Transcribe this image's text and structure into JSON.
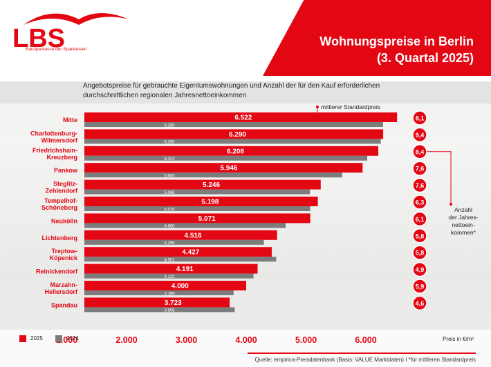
{
  "brand": {
    "logo_text": "LBS",
    "logo_sub": "Bausparkasse der Sparkassen",
    "red": "#e30613",
    "grey": "#7c7c7c"
  },
  "header": {
    "title_line1": "Wohnungspreise in Berlin",
    "title_line2": "(3. Quartal 2025)"
  },
  "subtitle": {
    "line1": "Angebotspreise für gebrauchte Eigentumswohnungen und Anzahl der für den Kauf erforderlichen",
    "line2": "durchschnittlichen regionalen Jahresnettoeinkommen"
  },
  "annotations": {
    "median_label": "mittlerer Standardpreis",
    "income_label": [
      "Anzahl",
      "der Jahres-",
      "nettoein-",
      "kommen*"
    ]
  },
  "footer": {
    "unit": "Preis in €/m²",
    "source": "Quelle: empirica-Preisdatenbank (Basis: VALUE Marktdaten)   I   *für mittleren Standardpreis"
  },
  "chart_data": {
    "type": "bar",
    "orientation": "horizontal",
    "categories": [
      [
        "Mitte"
      ],
      [
        "Charlottenburg-",
        "Wilmersdorf"
      ],
      [
        "Friedrichshain-",
        "Kreuzberg"
      ],
      [
        "Pankow"
      ],
      [
        "Steglitz-",
        "Zehlendorf"
      ],
      [
        "Tempelhof-",
        "Schöneberg"
      ],
      [
        "Neukölln"
      ],
      [
        "Lichtenberg"
      ],
      [
        "Treptow-",
        "Köpenick"
      ],
      [
        "Reinickendorf"
      ],
      [
        "Marzahn-",
        "Hellersdorf"
      ],
      [
        "Spandau"
      ]
    ],
    "series": [
      {
        "name": "2025",
        "color": "#e30613",
        "values": [
          6522,
          6290,
          6208,
          5946,
          5246,
          5198,
          5071,
          4516,
          4427,
          4191,
          4000,
          3723
        ],
        "labels": [
          "6.522",
          "6.290",
          "6.208",
          "5.946",
          "5.246",
          "5.198",
          "5.071",
          "4.516",
          "4.427",
          "4.191",
          "4.000",
          "3.723"
        ]
      },
      {
        "name": "2024",
        "color": "#7c7c7c",
        "values": [
          6289,
          6250,
          6024,
          5605,
          5066,
          5070,
          4660,
          4296,
          4501,
          4122,
          3789,
          3808
        ],
        "labels": [
          "6.289",
          "6.250",
          "6.024",
          "5.605",
          "5.066",
          "5.070",
          "4.660",
          "4.296",
          "4.501",
          "4.122",
          "3.789",
          "3.808"
        ]
      }
    ],
    "income_multiples": [
      "8,1",
      "9,4",
      "8,4",
      "7,6",
      "7,6",
      "6,3",
      "6,1",
      "5,8",
      "5,8",
      "4,9",
      "5,9",
      "4,6"
    ],
    "x_ticks": [
      1000,
      2000,
      3000,
      4000,
      5000,
      6000
    ],
    "x_tick_labels": [
      "1.000",
      "2.000",
      "3.000",
      "4.000",
      "5.000",
      "6.000"
    ],
    "xlim": [
      0,
      6522
    ],
    "legend_position": "bottom-left",
    "grid": false
  }
}
